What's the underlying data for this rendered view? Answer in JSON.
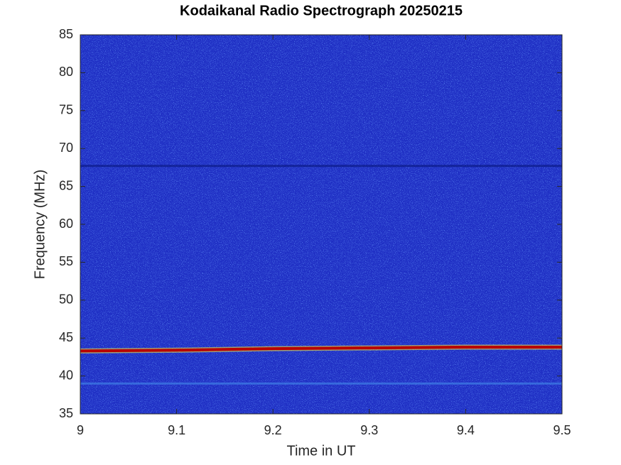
{
  "chart_data": {
    "type": "spectrogram",
    "title": "Kodaikanal Radio Spectrograph  20250215",
    "x_label": "Time in UT",
    "y_label": "Frequency (MHz)",
    "xlim": [
      9,
      9.5
    ],
    "ylim": [
      35,
      85
    ],
    "xticks": [
      9,
      9.1,
      9.2,
      9.3,
      9.4,
      9.5
    ],
    "yticks": [
      35,
      40,
      45,
      50,
      55,
      60,
      65,
      70,
      75,
      80,
      85
    ],
    "background_color": "#1f2fc4",
    "x": [
      9,
      9.1,
      9.2,
      9.3,
      9.4,
      9.5
    ],
    "series": [
      {
        "color": "#b80000",
        "values": [
          43.3,
          43.4,
          43.6,
          43.7,
          43.8,
          43.8
        ]
      },
      {
        "color": "#0b1a86",
        "values": [
          67.7,
          67.7,
          67.7,
          67.7,
          67.7,
          67.7
        ]
      },
      {
        "color": "#3f7fe6",
        "values": [
          39,
          39,
          39,
          39,
          39,
          39
        ]
      }
    ]
  }
}
